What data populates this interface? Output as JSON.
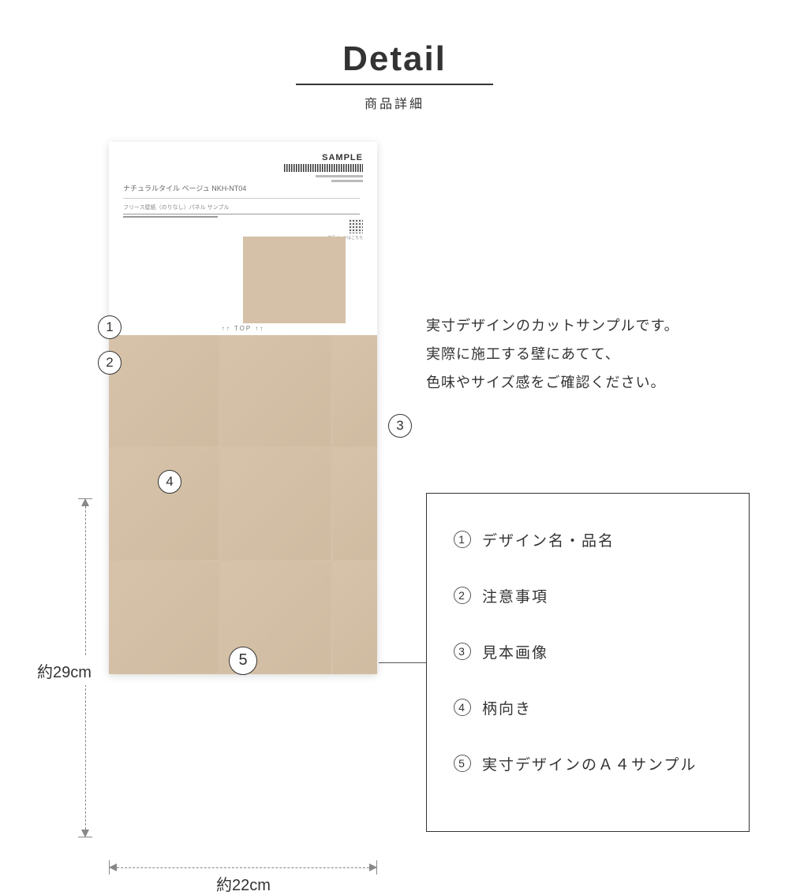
{
  "header": {
    "title": "Detail",
    "subtitle": "商品詳細"
  },
  "sample_card": {
    "sample_label": "SAMPLE",
    "product_name": "ナチュラルタイル ベージュ NKH-NT04",
    "product_sub": "フリース壁紙（のりなし）パネル サンプル",
    "qr_label": "商品ページはこちら",
    "top_indicator": "↑↑ TOP ↑↑",
    "tile_color": "#d4c1a8",
    "thumb_cols": 6,
    "thumb_rows": 6,
    "big_cols": 3,
    "big_rows": 3
  },
  "markers": {
    "m1": "1",
    "m2": "2",
    "m3": "3",
    "m4": "4",
    "m5": "5"
  },
  "description": {
    "line1": "実寸デザインのカットサンプルです。",
    "line2": "実際に施工する壁にあてて、",
    "line3": "色味やサイズ感をご確認ください。"
  },
  "legend": {
    "items": [
      {
        "num": "1",
        "label": "デザイン名・品名"
      },
      {
        "num": "2",
        "label": "注意事項"
      },
      {
        "num": "3",
        "label": "見本画像"
      },
      {
        "num": "4",
        "label": "柄向き"
      },
      {
        "num": "5",
        "label": "実寸デザインのＡ４サンプル"
      }
    ]
  },
  "dimensions": {
    "height_label": "約29cm",
    "width_label": "約22cm"
  },
  "colors": {
    "text": "#333333",
    "tile": "#d4c1a8",
    "dim_line": "#888888",
    "border": "#333333"
  }
}
